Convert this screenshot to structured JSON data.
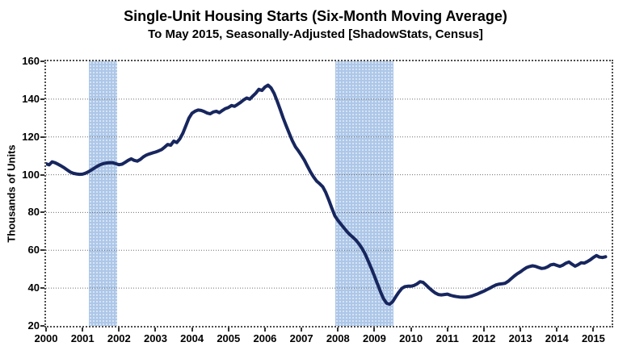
{
  "chart_data": {
    "type": "line",
    "title": "Single-Unit Housing Starts (Six-Month Moving Average)",
    "subtitle": "To May 2015, Seasonally-Adjusted [ShadowStats, Census]",
    "ylabel": "Thousands of Units",
    "xlabel": "",
    "xlim": [
      2000,
      2015.5
    ],
    "ylim": [
      20,
      160
    ],
    "x_ticks": [
      2000,
      2001,
      2002,
      2003,
      2004,
      2005,
      2006,
      2007,
      2008,
      2009,
      2010,
      2011,
      2012,
      2013,
      2014,
      2015
    ],
    "y_ticks": [
      20,
      40,
      60,
      80,
      100,
      120,
      140,
      160
    ],
    "grid_y_values": [
      40,
      60,
      80,
      100,
      120,
      140
    ],
    "grid": "horizontal-dotted",
    "legend": "none",
    "line_color": "#17265e",
    "band_color": "#adc7e8",
    "x_start": 2000.0,
    "x_step_years": 0.083333,
    "series": [
      {
        "name": "Single-Unit Housing Starts (6-month moving average, thousands of units)",
        "values": [
          105.8,
          105.2,
          106.8,
          106.3,
          105.5,
          104.6,
          103.6,
          102.5,
          101.4,
          100.7,
          100.4,
          100.2,
          100.3,
          100.8,
          101.6,
          102.6,
          103.6,
          104.6,
          105.4,
          105.9,
          106.2,
          106.4,
          106.3,
          105.8,
          105.3,
          105.6,
          106.5,
          107.6,
          108.4,
          107.6,
          107.2,
          108.1,
          109.4,
          110.4,
          111.0,
          111.5,
          112.0,
          112.6,
          113.3,
          114.6,
          116.0,
          115.6,
          117.8,
          117.0,
          119.0,
          122.0,
          126.0,
          130.0,
          132.5,
          133.6,
          134.2,
          134.0,
          133.4,
          132.6,
          132.2,
          133.2,
          133.6,
          132.8,
          134.0,
          135.0,
          135.6,
          136.6,
          136.2,
          137.2,
          138.3,
          139.6,
          140.6,
          140.0,
          141.6,
          143.2,
          145.2,
          144.6,
          146.4,
          147.4,
          145.9,
          143.0,
          139.0,
          134.5,
          130.0,
          125.8,
          121.8,
          118.0,
          114.8,
          112.6,
          110.2,
          107.6,
          104.4,
          101.4,
          98.8,
          96.6,
          95.2,
          93.6,
          90.6,
          86.6,
          82.2,
          78.2,
          75.8,
          73.8,
          71.8,
          69.8,
          68.2,
          66.8,
          65.2,
          63.2,
          60.8,
          57.8,
          54.2,
          50.4,
          46.4,
          42.2,
          38.0,
          34.4,
          32.0,
          31.5,
          32.8,
          35.4,
          37.8,
          39.8,
          40.8,
          41.0,
          41.0,
          41.4,
          42.2,
          43.4,
          43.0,
          41.6,
          40.0,
          38.6,
          37.4,
          36.6,
          36.4,
          36.6,
          36.8,
          36.2,
          35.8,
          35.5,
          35.3,
          35.2,
          35.2,
          35.4,
          35.8,
          36.4,
          37.0,
          37.7,
          38.4,
          39.2,
          40.0,
          40.9,
          41.7,
          42.1,
          42.3,
          42.6,
          43.6,
          45.0,
          46.4,
          47.6,
          48.6,
          49.8,
          50.8,
          51.4,
          51.8,
          51.5,
          50.9,
          50.4,
          50.6,
          51.3,
          52.3,
          52.6,
          52.0,
          51.5,
          52.2,
          53.2,
          53.8,
          52.6,
          51.6,
          52.4,
          53.4,
          53.2,
          54.0,
          55.0,
          56.2,
          57.2,
          56.4,
          56.2,
          56.6
        ]
      }
    ],
    "recession_bands": [
      {
        "start": 2001.17,
        "end": 2001.95
      },
      {
        "start": 2007.92,
        "end": 2009.52
      }
    ]
  }
}
